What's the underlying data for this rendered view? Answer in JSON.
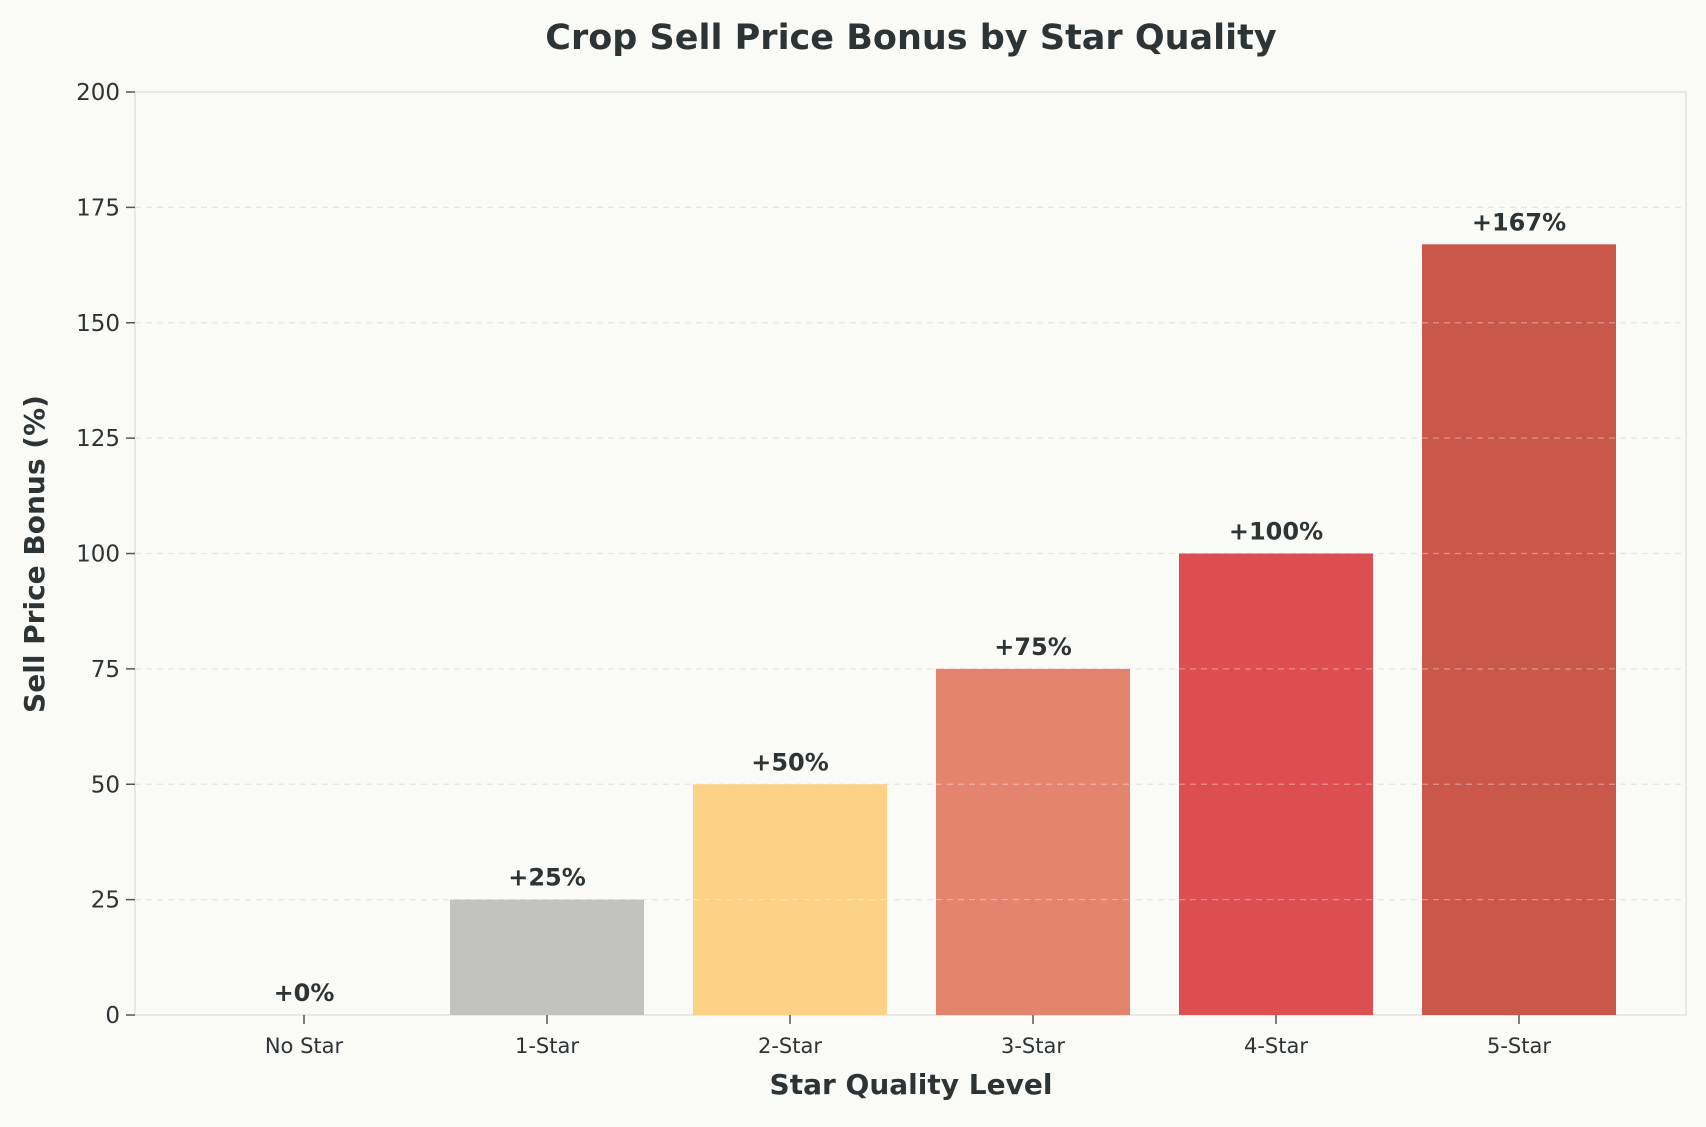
{
  "chart_data": {
    "type": "bar",
    "title": "Crop Sell Price Bonus by Star Quality",
    "xlabel": "Star Quality Level",
    "ylabel": "Sell Price Bonus (%)",
    "categories": [
      "No Star",
      "1-Star",
      "2-Star",
      "3-Star",
      "4-Star",
      "5-Star"
    ],
    "values": [
      0,
      25,
      50,
      75,
      100,
      167
    ],
    "data_labels": [
      "+0%",
      "+25%",
      "+50%",
      "+75%",
      "+100%",
      "+167%"
    ],
    "colors": [
      "#b0b0b0",
      "#c2c2c0",
      "#fcd286",
      "#e5846e",
      "#dc4e52",
      "#c9584a"
    ],
    "ylim": [
      0,
      200
    ],
    "yticks": [
      0,
      25,
      50,
      75,
      100,
      125,
      150,
      175,
      200
    ],
    "grid": true,
    "legend": "none"
  }
}
